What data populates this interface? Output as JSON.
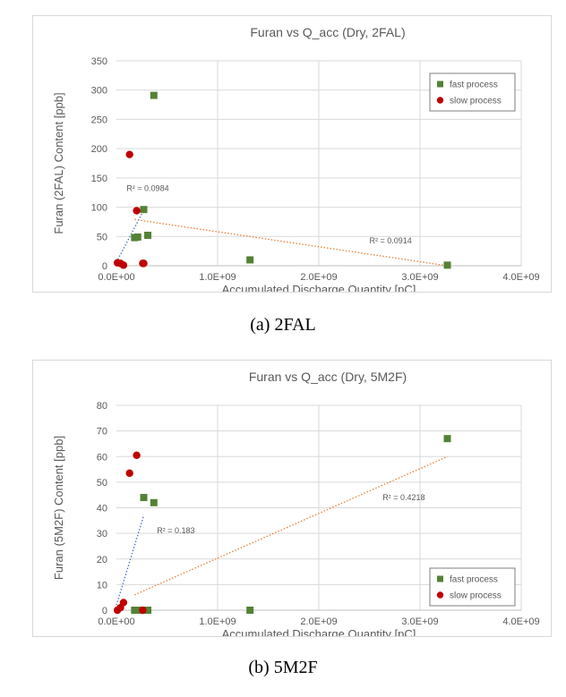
{
  "colors": {
    "fast": "#548235",
    "slow": "#c00000",
    "trend_fast": "#ed7d31",
    "trend_slow": "#4472c4",
    "grid": "#d9d9d9",
    "axis_text": "#595959"
  },
  "captions": {
    "a": "(a)  2FAL",
    "b": "(b)  5M2F"
  },
  "chart_data": [
    {
      "type": "scatter",
      "title": "Furan  vs  Q_acc (Dry, 2FAL)",
      "xlabel": "Accumulated Discharge Quantity [pC]",
      "ylabel": "Furan (2FAL) Content [ppb]",
      "xlim": [
        0,
        4000000000
      ],
      "ylim": [
        0,
        350
      ],
      "xticks": [
        0,
        1000000000,
        2000000000,
        3000000000,
        4000000000
      ],
      "xtick_labels": [
        "0.0E+00",
        "1.0E+09",
        "2.0E+09",
        "3.0E+09",
        "4.0E+09"
      ],
      "yticks": [
        0,
        50,
        100,
        150,
        200,
        250,
        300,
        350
      ],
      "grid": true,
      "legend_position": "top-right",
      "series": [
        {
          "name": "fast process",
          "marker": "square",
          "color": "#548235",
          "x": [
            180000000,
            210000000,
            270000000,
            310000000,
            370000000,
            1320000000,
            3270000000
          ],
          "y": [
            48,
            49,
            96,
            52,
            291,
            10,
            1
          ]
        },
        {
          "name": "slow process",
          "marker": "circle",
          "color": "#c00000",
          "x": [
            10000000,
            40000000,
            70000000,
            130000000,
            200000000,
            260000000,
            270000000
          ],
          "y": [
            5,
            4,
            1,
            190,
            94,
            4,
            4
          ]
        }
      ],
      "trendlines": [
        {
          "series": "fast process",
          "color": "#ed7d31",
          "x": [
            180000000,
            3270000000
          ],
          "y": [
            79,
            0
          ],
          "label": "R² = 0.0914",
          "label_at": [
            2500000000,
            38
          ]
        },
        {
          "series": "slow process",
          "color": "#4472c4",
          "x": [
            0,
            270000000
          ],
          "y": [
            6,
            95
          ],
          "label": "R² = 0.0984",
          "label_at": [
            100000000,
            128
          ]
        }
      ]
    },
    {
      "type": "scatter",
      "title": "Furan  vs  Q_acc (Dry, 5M2F)",
      "xlabel": "Accumulated Discharge Quantity [pC]",
      "ylabel": "Furan (5M2F) Content [ppb]",
      "xlim": [
        0,
        4000000000
      ],
      "ylim": [
        0,
        80
      ],
      "xticks": [
        0,
        1000000000,
        2000000000,
        3000000000,
        4000000000
      ],
      "xtick_labels": [
        "0.0E+00",
        "1.0E+09",
        "2.0E+09",
        "3.0E+09",
        "4.0E+09"
      ],
      "yticks": [
        0,
        10,
        20,
        30,
        40,
        50,
        60,
        70,
        80
      ],
      "grid": true,
      "legend_position": "bottom-right",
      "series": [
        {
          "name": "fast process",
          "marker": "square",
          "color": "#548235",
          "x": [
            180000000,
            210000000,
            270000000,
            310000000,
            370000000,
            1320000000,
            3270000000
          ],
          "y": [
            0,
            0,
            44,
            0,
            42,
            0,
            67
          ]
        },
        {
          "name": "slow process",
          "marker": "circle",
          "color": "#c00000",
          "x": [
            10000000,
            40000000,
            70000000,
            130000000,
            200000000,
            260000000
          ],
          "y": [
            0,
            1,
            3,
            53.5,
            60.5,
            0
          ]
        }
      ],
      "trendlines": [
        {
          "series": "fast process",
          "color": "#ed7d31",
          "x": [
            180000000,
            3270000000
          ],
          "y": [
            6,
            60
          ],
          "label": "R² = 0.4218",
          "label_at": [
            2630000000,
            43
          ]
        },
        {
          "series": "slow process",
          "color": "#4472c4",
          "x": [
            0,
            270000000
          ],
          "y": [
            2,
            37
          ],
          "label": "R² = 0.183",
          "label_at": [
            400000000,
            30
          ]
        }
      ]
    }
  ]
}
